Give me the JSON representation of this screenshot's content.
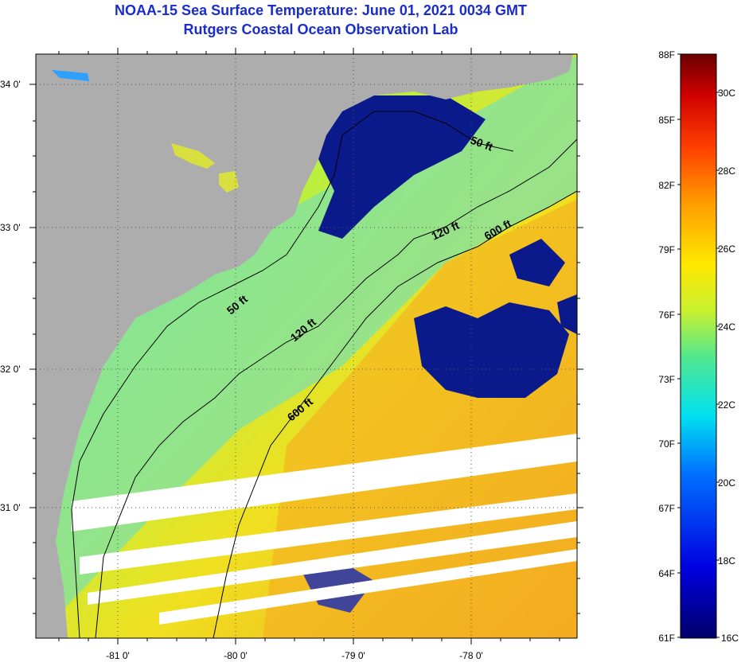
{
  "title": {
    "line1": "NOAA-15 Sea Surface Temperature:  June 01, 2021 0034 GMT",
    "line2": "Rutgers Coastal Ocean Observation Lab"
  },
  "map": {
    "lat_ticks": [
      "34 0'",
      "33 0'",
      "32 0'",
      "31 0'"
    ],
    "lon_ticks": [
      "-81 0'",
      "-80 0'",
      "-79 0'",
      "-78 0'"
    ],
    "contours": [
      "50 ft",
      "50 ft",
      "120 ft",
      "120 ft",
      "600 ft",
      "600 ft"
    ],
    "colors": {
      "land": "#adadad",
      "missing": "#ffffff",
      "cold": "#0a1a8a",
      "warm": "#f0a020"
    }
  },
  "colorbar": {
    "fahrenheit": [
      "88F",
      "85F",
      "82F",
      "79F",
      "76F",
      "73F",
      "70F",
      "67F",
      "64F",
      "61F"
    ],
    "celsius": [
      "30C",
      "28C",
      "26C",
      "24C",
      "22C",
      "20C",
      "18C",
      "16C"
    ],
    "range_c": [
      16,
      31
    ]
  }
}
